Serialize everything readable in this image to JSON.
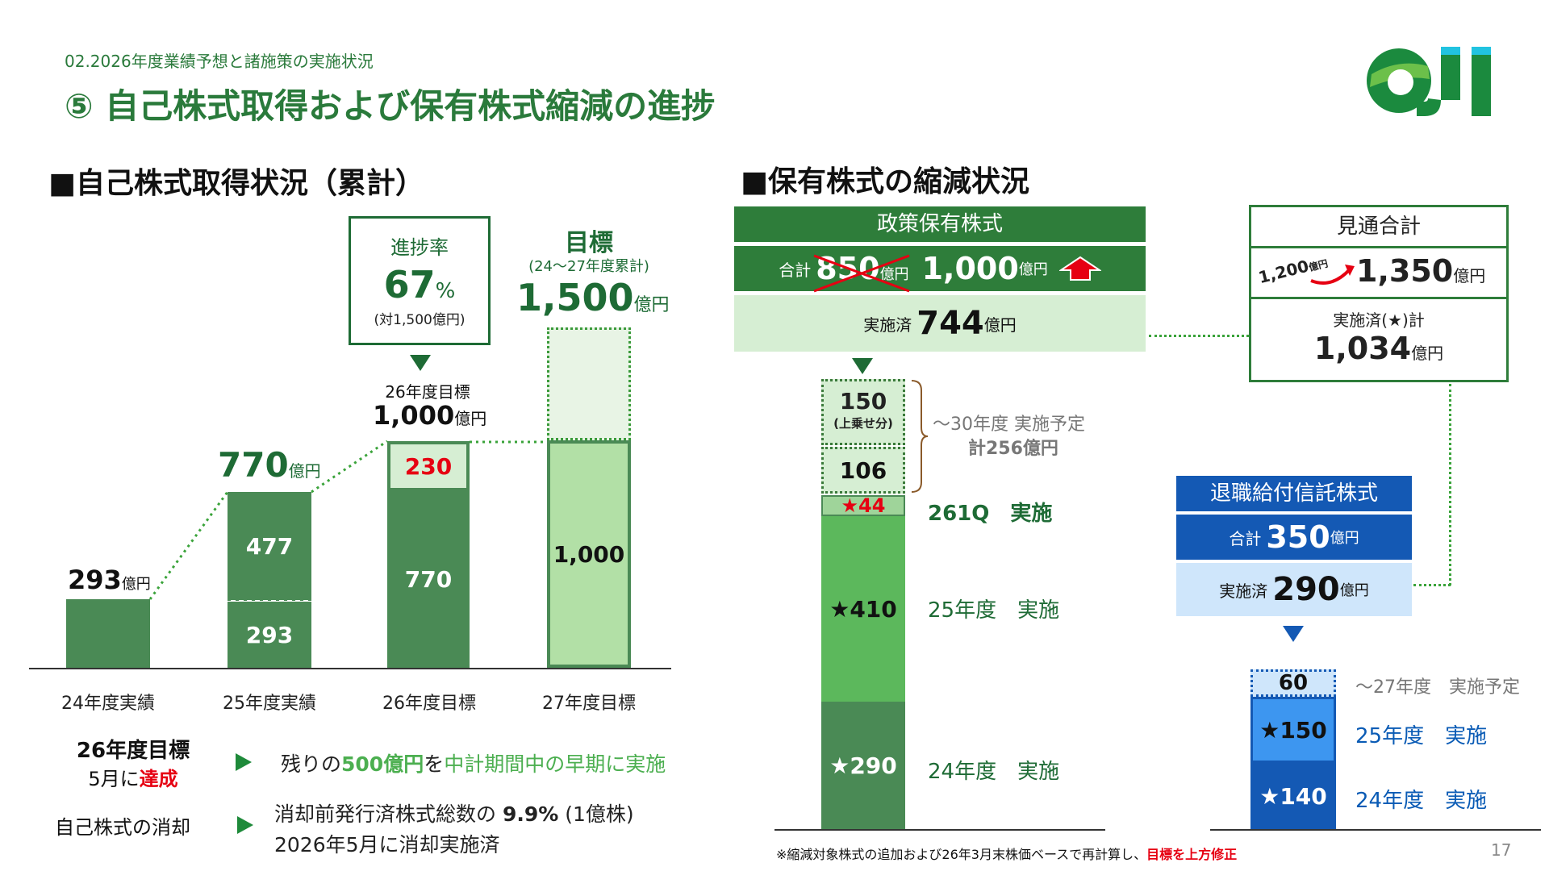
{
  "header": {
    "section": "02.2026年度業績予想と諸施策の実施状況",
    "title": "⑤ 自己株式取得および保有株式縮減の進捗",
    "logo_text": "OJI",
    "page_number": "17"
  },
  "left": {
    "heading": "■自己株式取得状況（累計）",
    "progress_box": {
      "label": "進捗率",
      "value": "67",
      "unit": "%",
      "note": "(対1,500億円)"
    },
    "target": {
      "label": "目標",
      "sub": "(24～27年度累計)",
      "value": "1,500",
      "unit": "億円"
    },
    "fy26_target": {
      "label": "26年度目標",
      "value": "1,000",
      "unit": "億円"
    },
    "bar_labels": {
      "b24_total": "293",
      "b25_total": "770",
      "unit": "億円",
      "b25_top": "477",
      "b25_bottom": "293",
      "b26_top": "230",
      "b26_bottom": "770",
      "b27": "1,000"
    },
    "categories": [
      "24年度実績",
      "25年度実績",
      "26年度目標",
      "27年度目標"
    ],
    "note1": {
      "label_line1": "26年度目標",
      "label_line2_a": "5月に",
      "label_line2_b": "達成",
      "text_a": "残りの",
      "text_b": "500億円",
      "text_c": "を",
      "text_d": "中計期間中の早期に実施"
    },
    "note2": {
      "label": "自己株式の消却",
      "line1_a": "消却前発行済株式総数の ",
      "line1_b": "9.9%",
      "line1_c": " (1億株)",
      "line2": "2026年5月に消却実施済"
    }
  },
  "right": {
    "heading": "■保有株式の縮減状況",
    "policy": {
      "title": "政策保有株式",
      "total_label": "合計",
      "old_value": "850",
      "unit": "億円",
      "new_value": "1,000",
      "done_label": "実施済",
      "done_value": "744"
    },
    "stack": {
      "s150": "150",
      "s150_note": "(上乗せ分)",
      "s106": "106",
      "s44": "★44",
      "s410": "★410",
      "s290": "★290"
    },
    "stack_notes": {
      "plan_a": "～30年度 実施予定",
      "plan_b": "計256億円",
      "q1": "261Q　実施",
      "fy25": "25年度　実施",
      "fy24": "24年度　実施"
    },
    "outlook": {
      "title": "見通合計",
      "old_value": "1,200",
      "old_unit": "億円",
      "new_value": "1,350",
      "unit": "億円",
      "done_label": "実施済(★)計",
      "done_value": "1,034"
    },
    "retire": {
      "title": "退職給付信託株式",
      "total_label": "合計",
      "total_value": "350",
      "unit": "億円",
      "done_label": "実施済",
      "done_value": "290"
    },
    "stack2": {
      "s60": "60",
      "s150": "★150",
      "s140": "★140",
      "plan": "～27年度　実施予定",
      "fy25": "25年度　実施",
      "fy24": "24年度　実施"
    },
    "footnote_a": "※縮減対象株式の追加および26年3月末株価ベースで再計算し、",
    "footnote_b": "目標を上方修正"
  },
  "chart_data": {
    "type": "bar",
    "categories": [
      "24年度実績",
      "25年度実績",
      "26年度目標",
      "27年度目標"
    ],
    "series": [
      {
        "name": "",
        "values": [
          293,
          293,
          770,
          1000
        ]
      },
      {
        "name": "",
        "values": [
          0,
          477,
          230,
          500
        ]
      }
    ],
    "ylim": [
      0,
      1500
    ]
  },
  "colors": {
    "dark_green": "#4a8a55",
    "mid_green": "#5cb85c",
    "light_green": "#b2e0a6",
    "pale_green": "#d6eed3",
    "header_green": "#2e7d3a",
    "blue": "#1459b4",
    "light_blue": "#cfe6fb",
    "red": "#e60012"
  }
}
